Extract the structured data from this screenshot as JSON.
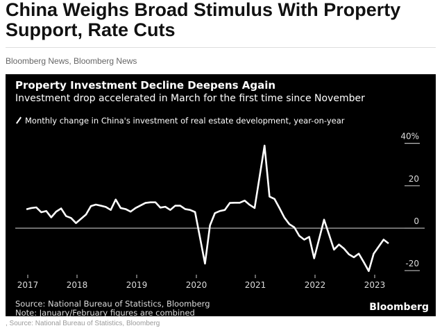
{
  "article": {
    "headline": "China Weighs Broad Stimulus With Property Support, Rate Cuts",
    "byline": "Bloomberg News, Bloomberg News",
    "caption": ", Source: National Bureau of Statistics, Bloomberg"
  },
  "chart_data": {
    "type": "line",
    "title": "Property Investment Decline Deepens Again",
    "subtitle": "Investment drop accelerated in March for the first time since November",
    "legend": "Monthly change in China's investment of real estate development, year-on-year",
    "source": "Source: National Bureau of Statistics, Bloomberg",
    "note": "Note: January/February figures are combined",
    "logo": "Bloomberg",
    "ylim": [
      -20,
      40
    ],
    "y_ticks": [
      "40%",
      "20",
      "0",
      "-20"
    ],
    "x_ticks": [
      "2017",
      "2018",
      "2019",
      "2020",
      "2021",
      "2022",
      "2023"
    ],
    "line_color": "#ffffff",
    "background": "#000000",
    "series": [
      {
        "x": [
          "2017-02",
          "2017-03",
          "2017-04",
          "2017-05",
          "2017-06",
          "2017-07",
          "2017-08",
          "2017-09",
          "2017-10",
          "2017-11",
          "2017-12",
          "2018-02",
          "2018-03",
          "2018-04",
          "2018-05",
          "2018-06",
          "2018-07",
          "2018-08",
          "2018-09",
          "2018-10",
          "2018-11",
          "2018-12",
          "2019-02",
          "2019-03",
          "2019-04",
          "2019-05",
          "2019-06",
          "2019-07",
          "2019-08",
          "2019-09",
          "2019-10",
          "2019-11",
          "2019-12",
          "2020-02",
          "2020-03",
          "2020-04",
          "2020-05",
          "2020-06",
          "2020-07",
          "2020-08",
          "2020-09",
          "2020-10",
          "2020-11",
          "2020-12",
          "2021-02",
          "2021-03",
          "2021-04",
          "2021-05",
          "2021-06",
          "2021-07",
          "2021-08",
          "2021-09",
          "2021-10",
          "2021-11",
          "2021-12",
          "2022-02",
          "2022-03",
          "2022-04",
          "2022-05",
          "2022-06",
          "2022-07",
          "2022-08",
          "2022-09",
          "2022-10",
          "2022-11",
          "2022-12",
          "2023-02",
          "2023-03"
        ],
        "y": [
          8.9,
          9.5,
          9.8,
          7.5,
          8.1,
          5.1,
          7.8,
          9.3,
          5.7,
          4.8,
          2.4,
          6.4,
          10.4,
          11.1,
          10.6,
          10.0,
          8.6,
          13.5,
          9.5,
          9.0,
          7.8,
          9.5,
          11.9,
          12.2,
          12.2,
          9.7,
          10.1,
          8.6,
          10.6,
          10.6,
          9.0,
          8.6,
          7.6,
          -16.7,
          1.3,
          7.1,
          8.1,
          8.6,
          11.9,
          12.0,
          12.0,
          13.0,
          11.0,
          9.5,
          38.9,
          14.9,
          13.8,
          9.5,
          5.0,
          1.9,
          0.4,
          -3.6,
          -5.4,
          -4.1,
          -14.2,
          4.0,
          -3.0,
          -10.1,
          -7.7,
          -9.6,
          -12.3,
          -13.7,
          -12.0,
          -16.0,
          -20.2,
          -12.0,
          -5.4,
          -7.2
        ]
      }
    ]
  }
}
